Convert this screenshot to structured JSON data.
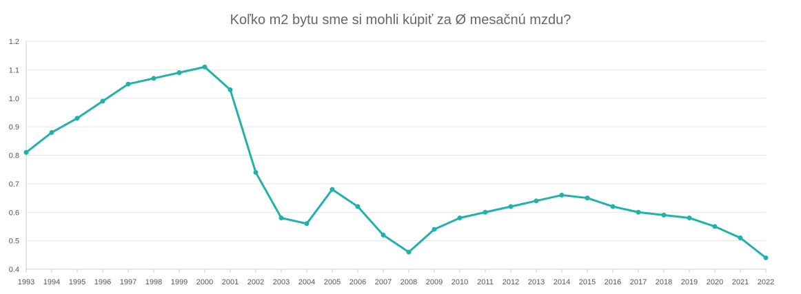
{
  "chart_data": {
    "type": "line",
    "title": "Koľko m2 bytu sme si mohli kúpiť za Ø mesačnú mzdu?",
    "xlabel": "",
    "ylabel": "",
    "x": [
      "1993",
      "1994",
      "1995",
      "1996",
      "1997",
      "1998",
      "1999",
      "2000",
      "2001",
      "2002",
      "2003",
      "2004",
      "2005",
      "2006",
      "2007",
      "2008",
      "2009",
      "2010",
      "2011",
      "2012",
      "2013",
      "2014",
      "2015",
      "2016",
      "2017",
      "2018",
      "2019",
      "2020",
      "2021",
      "2022"
    ],
    "series": [
      {
        "values": [
          0.81,
          0.88,
          0.93,
          0.99,
          1.05,
          1.07,
          1.09,
          1.11,
          1.03,
          0.74,
          0.58,
          0.56,
          0.68,
          0.62,
          0.52,
          0.46,
          0.54,
          0.58,
          0.6,
          0.62,
          0.64,
          0.66,
          0.65,
          0.62,
          0.6,
          0.59,
          0.58,
          0.55,
          0.51,
          0.44
        ]
      }
    ],
    "ylim": [
      0.4,
      1.2
    ],
    "yticks": [
      "0.4",
      "0.5",
      "0.6",
      "0.7",
      "0.8",
      "0.9",
      "1.0",
      "1.1",
      "1.2"
    ],
    "grid": true,
    "legend": "none",
    "colors": {
      "line": "#20b2aa",
      "grid": "#e6e6e6",
      "axis": "#cccccc"
    }
  }
}
